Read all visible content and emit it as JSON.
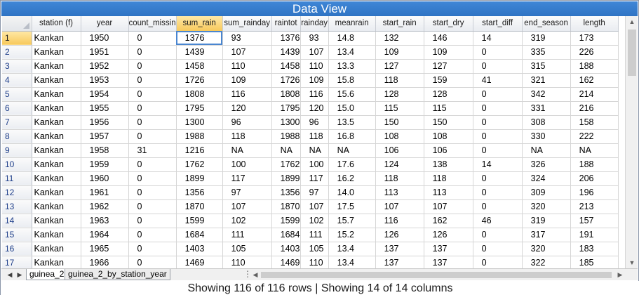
{
  "window": {
    "title": "Data View"
  },
  "columns": [
    "station (f)",
    "year",
    "count_missin",
    "sum_rain",
    "sum_rainday",
    "raintot",
    "rainday",
    "meanrain",
    "start_rain",
    "start_dry",
    "start_diff",
    "end_season",
    "length"
  ],
  "rows": [
    [
      "1",
      "Kankan",
      "1950",
      "0",
      "1376",
      "93",
      "1376",
      "93",
      "14.8",
      "132",
      "146",
      "14",
      "319",
      "173"
    ],
    [
      "2",
      "Kankan",
      "1951",
      "0",
      "1439",
      "107",
      "1439",
      "107",
      "13.4",
      "109",
      "109",
      "0",
      "335",
      "226"
    ],
    [
      "3",
      "Kankan",
      "1952",
      "0",
      "1458",
      "110",
      "1458",
      "110",
      "13.3",
      "127",
      "127",
      "0",
      "315",
      "188"
    ],
    [
      "4",
      "Kankan",
      "1953",
      "0",
      "1726",
      "109",
      "1726",
      "109",
      "15.8",
      "118",
      "159",
      "41",
      "321",
      "162"
    ],
    [
      "5",
      "Kankan",
      "1954",
      "0",
      "1808",
      "116",
      "1808",
      "116",
      "15.6",
      "128",
      "128",
      "0",
      "342",
      "214"
    ],
    [
      "6",
      "Kankan",
      "1955",
      "0",
      "1795",
      "120",
      "1795",
      "120",
      "15.0",
      "115",
      "115",
      "0",
      "331",
      "216"
    ],
    [
      "7",
      "Kankan",
      "1956",
      "0",
      "1300",
      "96",
      "1300",
      "96",
      "13.5",
      "150",
      "150",
      "0",
      "308",
      "158"
    ],
    [
      "8",
      "Kankan",
      "1957",
      "0",
      "1988",
      "118",
      "1988",
      "118",
      "16.8",
      "108",
      "108",
      "0",
      "330",
      "222"
    ],
    [
      "9",
      "Kankan",
      "1958",
      "31",
      "1216",
      "NA",
      "NA",
      "NA",
      "NA",
      "106",
      "106",
      "0",
      "NA",
      "NA"
    ],
    [
      "10",
      "Kankan",
      "1959",
      "0",
      "1762",
      "100",
      "1762",
      "100",
      "17.6",
      "124",
      "138",
      "14",
      "326",
      "188"
    ],
    [
      "11",
      "Kankan",
      "1960",
      "0",
      "1899",
      "117",
      "1899",
      "117",
      "16.2",
      "118",
      "118",
      "0",
      "324",
      "206"
    ],
    [
      "12",
      "Kankan",
      "1961",
      "0",
      "1356",
      "97",
      "1356",
      "97",
      "14.0",
      "113",
      "113",
      "0",
      "309",
      "196"
    ],
    [
      "13",
      "Kankan",
      "1962",
      "0",
      "1870",
      "107",
      "1870",
      "107",
      "17.5",
      "107",
      "107",
      "0",
      "320",
      "213"
    ],
    [
      "14",
      "Kankan",
      "1963",
      "0",
      "1599",
      "102",
      "1599",
      "102",
      "15.7",
      "116",
      "162",
      "46",
      "319",
      "157"
    ],
    [
      "15",
      "Kankan",
      "1964",
      "0",
      "1684",
      "111",
      "1684",
      "111",
      "15.2",
      "126",
      "126",
      "0",
      "317",
      "191"
    ],
    [
      "16",
      "Kankan",
      "1965",
      "0",
      "1403",
      "105",
      "1403",
      "105",
      "13.4",
      "137",
      "137",
      "0",
      "320",
      "183"
    ],
    [
      "17",
      "Kankan",
      "1966",
      "0",
      "1469",
      "110",
      "1469",
      "110",
      "13.4",
      "137",
      "137",
      "0",
      "322",
      "185"
    ]
  ],
  "selection": {
    "column": "sum_rain",
    "row": "1",
    "cell_value": "1376"
  },
  "sheet_tabs": [
    {
      "label": "guinea_2",
      "active": true
    },
    {
      "label": "guinea_2_by_station_year",
      "active": false
    }
  ],
  "status": {
    "text": "Showing 116 of 116 rows | Showing 14 of 14 columns"
  },
  "icons": {
    "tab_nav_left": "triangle-left-icon",
    "tab_nav_right": "triangle-right-icon",
    "scroll_up": "chevron-up-icon",
    "scroll_down": "chevron-down-icon",
    "scroll_left": "chevron-left-icon",
    "scroll_right": "chevron-right-icon"
  },
  "colors": {
    "title_bar": "#3f86d6",
    "selected_header": "#f7c95c",
    "selection_border": "#4a86d0",
    "row_header_text": "#1f3f8a"
  }
}
